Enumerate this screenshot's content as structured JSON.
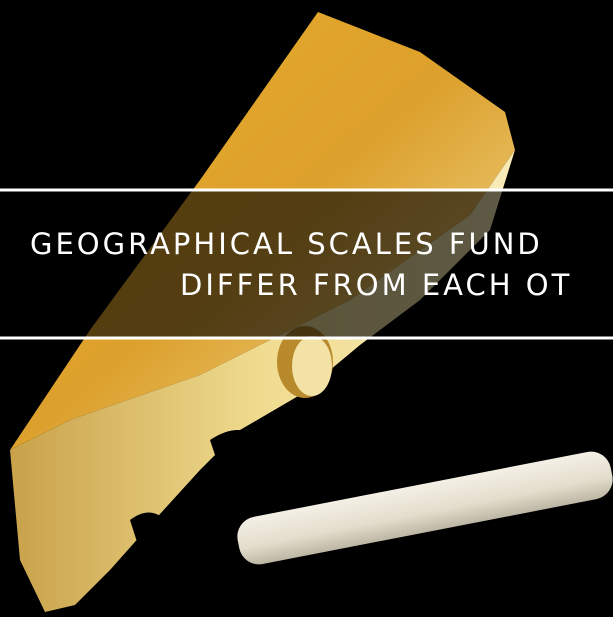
{
  "slide": {
    "title_lines": [
      "GEOGRAPHICAL SCALES FUND",
      "DIFFER FROM EACH OT"
    ]
  }
}
